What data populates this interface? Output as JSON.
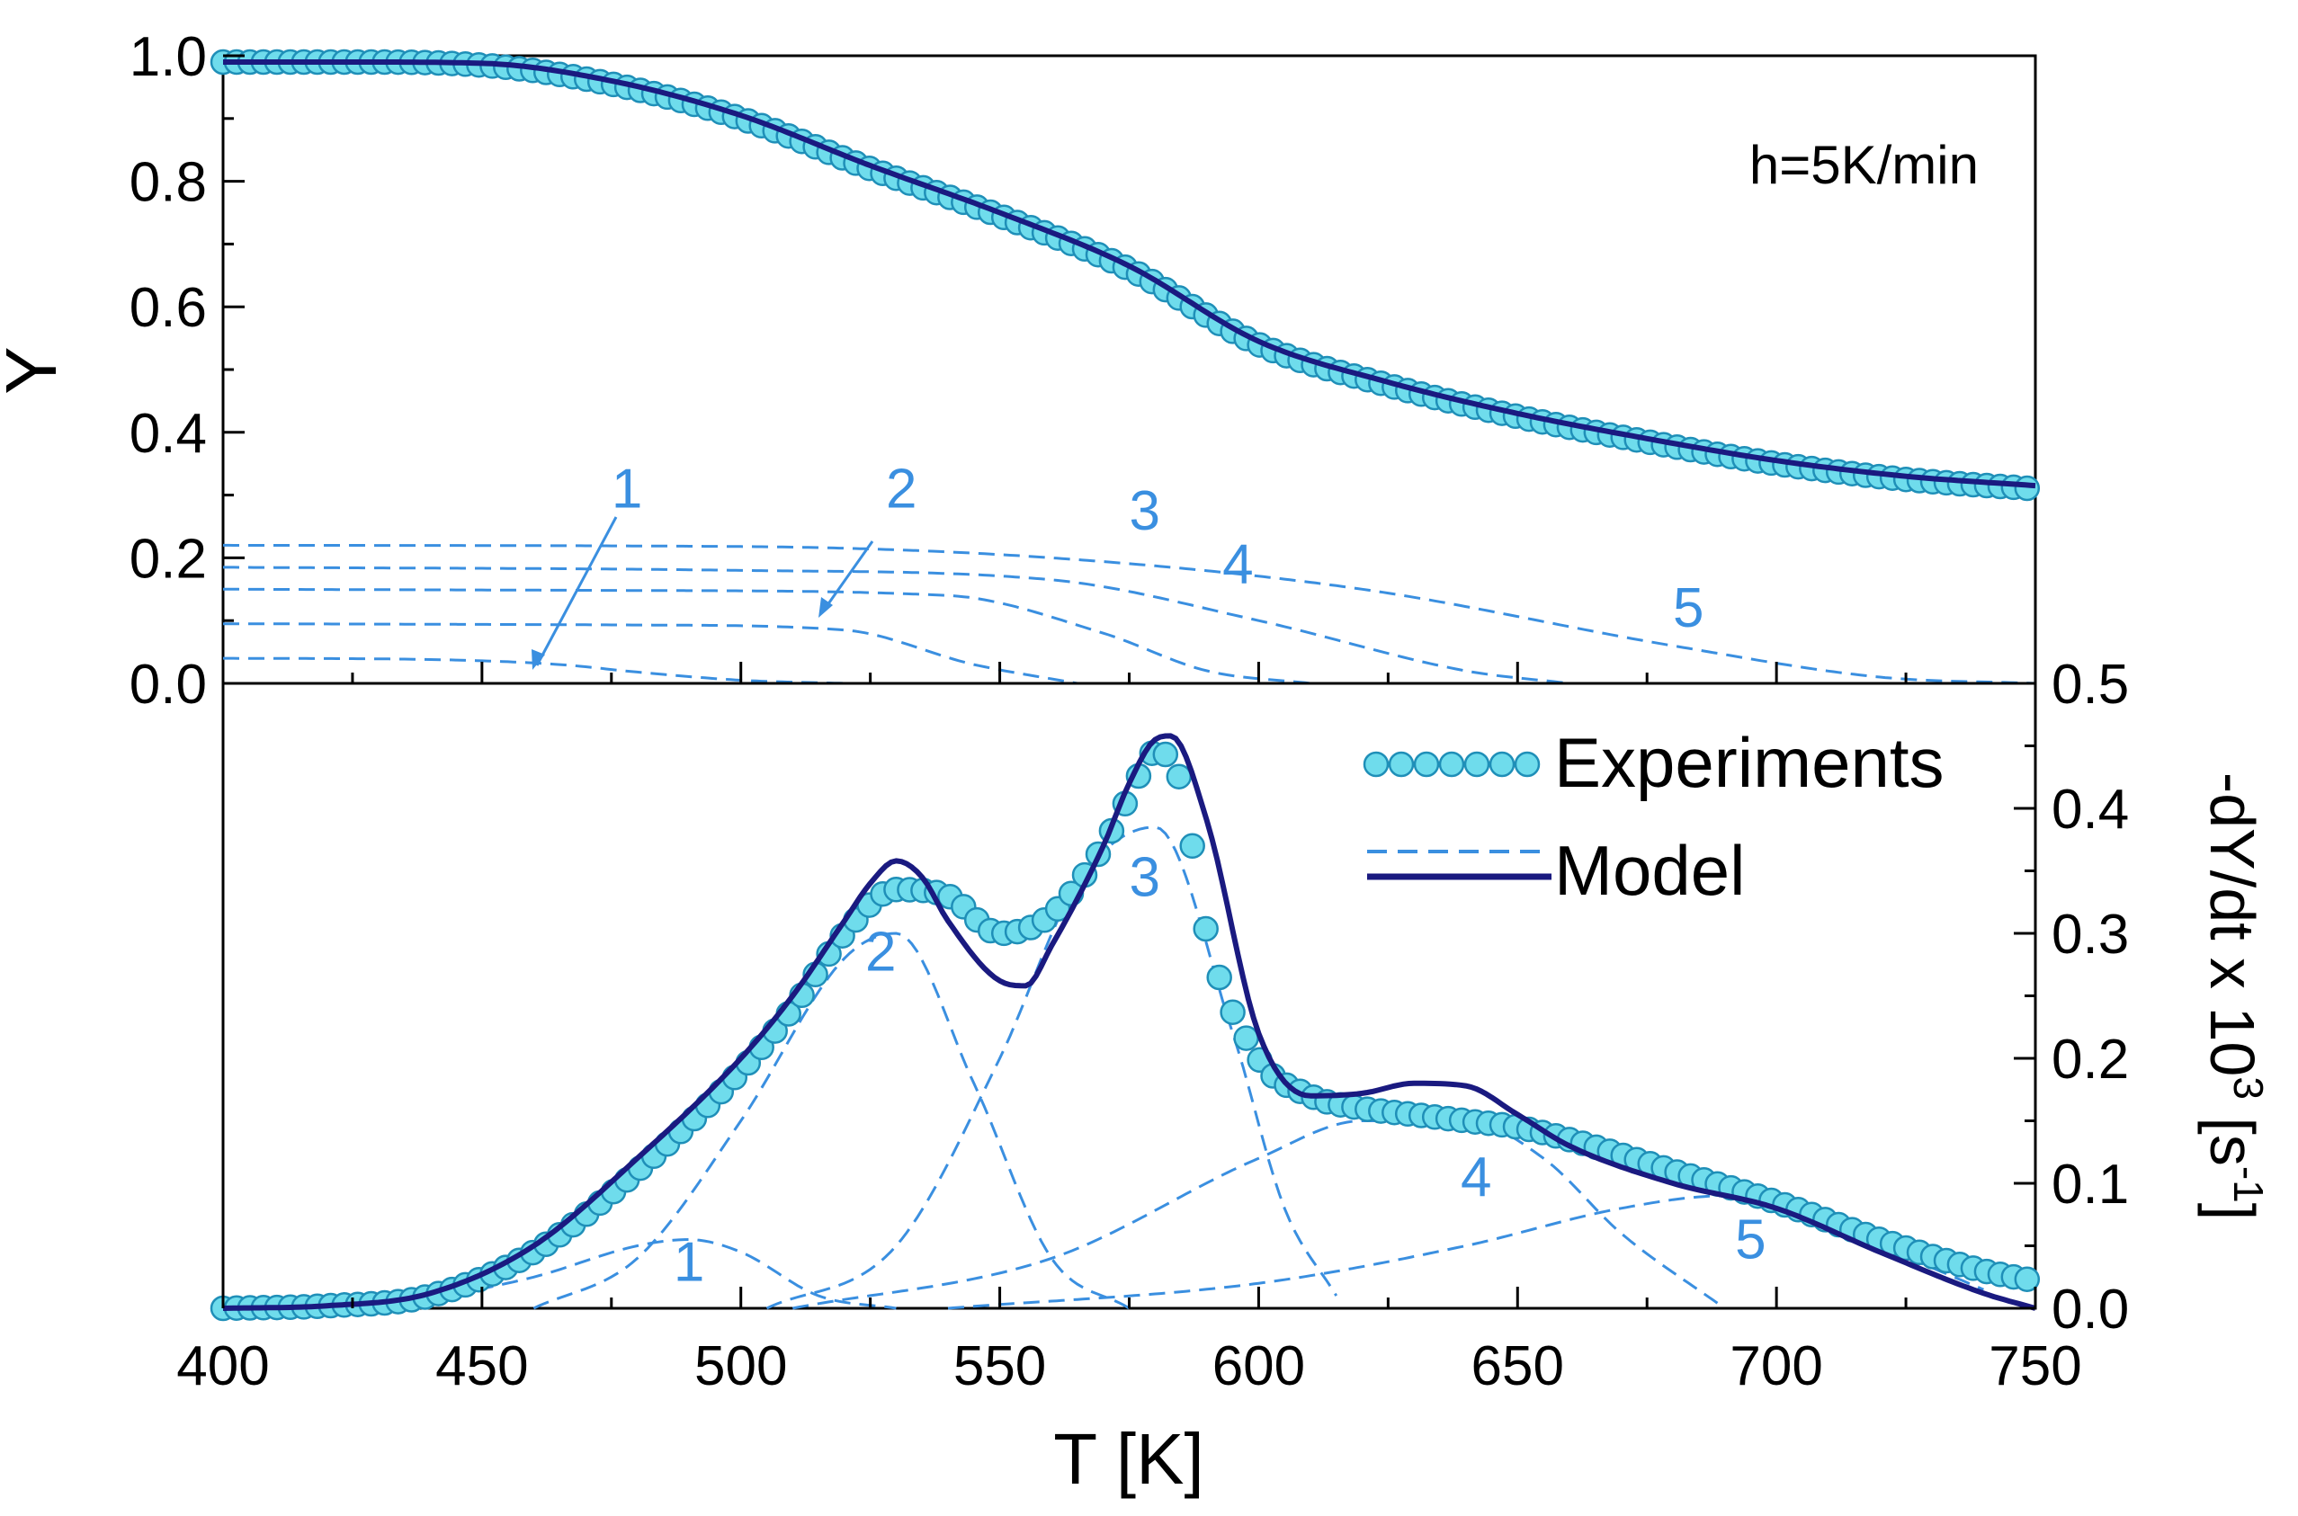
{
  "chart_data": [
    {
      "type": "line",
      "panel": "top",
      "ylabel": "Y",
      "xlim": [
        400,
        750
      ],
      "ylim": [
        0,
        1.0
      ],
      "yticks": [
        "0.0",
        "0.2",
        "0.4",
        "0.6",
        "0.8",
        "1.0"
      ],
      "annotation": "h=5K/min",
      "series": [
        {
          "name": "Experiments",
          "style": "circles",
          "color": "#5fd3e8",
          "x": [
            400,
            425,
            450,
            475,
            500,
            525,
            550,
            575,
            600,
            625,
            650,
            675,
            700,
            725,
            750
          ],
          "y": [
            0.99,
            0.99,
            0.985,
            0.955,
            0.9,
            0.82,
            0.745,
            0.66,
            0.54,
            0.475,
            0.425,
            0.385,
            0.35,
            0.325,
            0.31
          ]
        },
        {
          "name": "Model",
          "style": "solid",
          "color": "#1a1a80",
          "x": [
            400,
            425,
            450,
            475,
            500,
            525,
            550,
            575,
            600,
            625,
            650,
            675,
            700,
            725,
            750
          ],
          "y": [
            0.99,
            0.99,
            0.988,
            0.96,
            0.905,
            0.825,
            0.75,
            0.665,
            0.545,
            0.48,
            0.43,
            0.39,
            0.355,
            0.33,
            0.315
          ]
        }
      ],
      "components": [
        {
          "label": "1",
          "x": [
            400,
            440,
            465,
            480,
            500,
            520
          ],
          "y": [
            0.04,
            0.038,
            0.03,
            0.018,
            0.005,
            0.0
          ]
        },
        {
          "label": "2",
          "x": [
            400,
            480,
            520,
            545,
            565
          ],
          "y": [
            0.095,
            0.093,
            0.085,
            0.03,
            0.0
          ]
        },
        {
          "label": "3",
          "x": [
            400,
            480,
            540,
            570,
            590,
            610
          ],
          "y": [
            0.15,
            0.148,
            0.14,
            0.08,
            0.02,
            0.0
          ]
        },
        {
          "label": "4",
          "x": [
            400,
            500,
            560,
            600,
            640,
            660
          ],
          "y": [
            0.185,
            0.18,
            0.165,
            0.1,
            0.02,
            0.0
          ]
        },
        {
          "label": "5",
          "x": [
            400,
            500,
            560,
            620,
            680,
            720,
            750
          ],
          "y": [
            0.22,
            0.218,
            0.2,
            0.15,
            0.06,
            0.01,
            0.0
          ]
        }
      ],
      "component_labels": [
        {
          "text": "1",
          "x": 478,
          "y": 0.28
        },
        {
          "text": "2",
          "x": 531,
          "y": 0.28
        },
        {
          "text": "3",
          "x": 578,
          "y": 0.245
        },
        {
          "text": "4",
          "x": 596,
          "y": 0.16
        },
        {
          "text": "5",
          "x": 683,
          "y": 0.09
        }
      ]
    },
    {
      "type": "line",
      "panel": "bottom",
      "xlabel": "T [K]",
      "ylabel": "-dY/dt x 10",
      "ylabel_sup1": "3",
      "ylabel_unit": " [s",
      "ylabel_sup2": "-1",
      "ylabel_end": "]",
      "xlim": [
        400,
        750
      ],
      "ylim": [
        0,
        0.5
      ],
      "xticks": [
        "400",
        "450",
        "500",
        "550",
        "600",
        "650",
        "700",
        "750"
      ],
      "yticks": [
        "0.0",
        "0.1",
        "0.2",
        "0.3",
        "0.4",
        "0.5"
      ],
      "legend": {
        "placement": "top-right",
        "entries": [
          "Experiments",
          "Model"
        ]
      },
      "series": [
        {
          "name": "Experiments",
          "style": "circles",
          "color": "#5fd3e8",
          "x": [
            400,
            420,
            440,
            460,
            480,
            500,
            510,
            520,
            530,
            540,
            550,
            560,
            570,
            575,
            580,
            585,
            590,
            600,
            610,
            620,
            630,
            640,
            650,
            660,
            680,
            700,
            720,
            740,
            750
          ],
          "y": [
            0.0,
            0.002,
            0.01,
            0.045,
            0.11,
            0.19,
            0.24,
            0.3,
            0.335,
            0.33,
            0.3,
            0.315,
            0.37,
            0.41,
            0.445,
            0.42,
            0.3,
            0.2,
            0.17,
            0.16,
            0.155,
            0.15,
            0.145,
            0.135,
            0.11,
            0.085,
            0.055,
            0.03,
            0.022
          ]
        },
        {
          "name": "Model",
          "style": "solid",
          "color": "#1a1a80",
          "x": [
            400,
            420,
            440,
            460,
            480,
            500,
            510,
            520,
            525,
            530,
            535,
            540,
            550,
            555,
            560,
            570,
            575,
            580,
            583,
            590,
            600,
            610,
            620,
            630,
            640,
            650,
            660,
            680,
            700,
            720,
            740,
            750
          ],
          "y": [
            0.0,
            0.002,
            0.012,
            0.05,
            0.12,
            0.2,
            0.25,
            0.31,
            0.34,
            0.358,
            0.345,
            0.31,
            0.262,
            0.258,
            0.29,
            0.37,
            0.42,
            0.455,
            0.458,
            0.39,
            0.22,
            0.17,
            0.172,
            0.18,
            0.178,
            0.155,
            0.13,
            0.1,
            0.08,
            0.045,
            0.012,
            0.0
          ]
        }
      ],
      "components": [
        {
          "label": "1",
          "x": [
            430,
            460,
            480,
            490,
            500,
            515,
            530
          ],
          "y": [
            0.0,
            0.025,
            0.05,
            0.055,
            0.045,
            0.01,
            0.0
          ]
        },
        {
          "label": "2",
          "x": [
            460,
            480,
            500,
            520,
            530,
            545,
            560,
            575
          ],
          "y": [
            0.0,
            0.04,
            0.15,
            0.28,
            0.3,
            0.18,
            0.04,
            0.0
          ]
        },
        {
          "label": "3",
          "x": [
            505,
            530,
            550,
            565,
            580,
            595,
            605,
            615
          ],
          "y": [
            0.0,
            0.05,
            0.2,
            0.34,
            0.385,
            0.22,
            0.08,
            0.01
          ]
        },
        {
          "label": "4",
          "x": [
            510,
            560,
            600,
            620,
            640,
            655,
            670,
            690
          ],
          "y": [
            0.0,
            0.04,
            0.12,
            0.15,
            0.15,
            0.12,
            0.06,
            0.0
          ]
        },
        {
          "label": "5",
          "x": [
            540,
            600,
            640,
            670,
            690,
            700,
            720,
            740
          ],
          "y": [
            0.0,
            0.02,
            0.05,
            0.08,
            0.09,
            0.085,
            0.05,
            0.015
          ]
        }
      ],
      "component_labels": [
        {
          "text": "1",
          "x": 490,
          "y": 0.022
        },
        {
          "text": "2",
          "x": 527,
          "y": 0.27
        },
        {
          "text": "3",
          "x": 578,
          "y": 0.33
        },
        {
          "text": "4",
          "x": 642,
          "y": 0.09
        },
        {
          "text": "5",
          "x": 695,
          "y": 0.04
        }
      ]
    }
  ]
}
